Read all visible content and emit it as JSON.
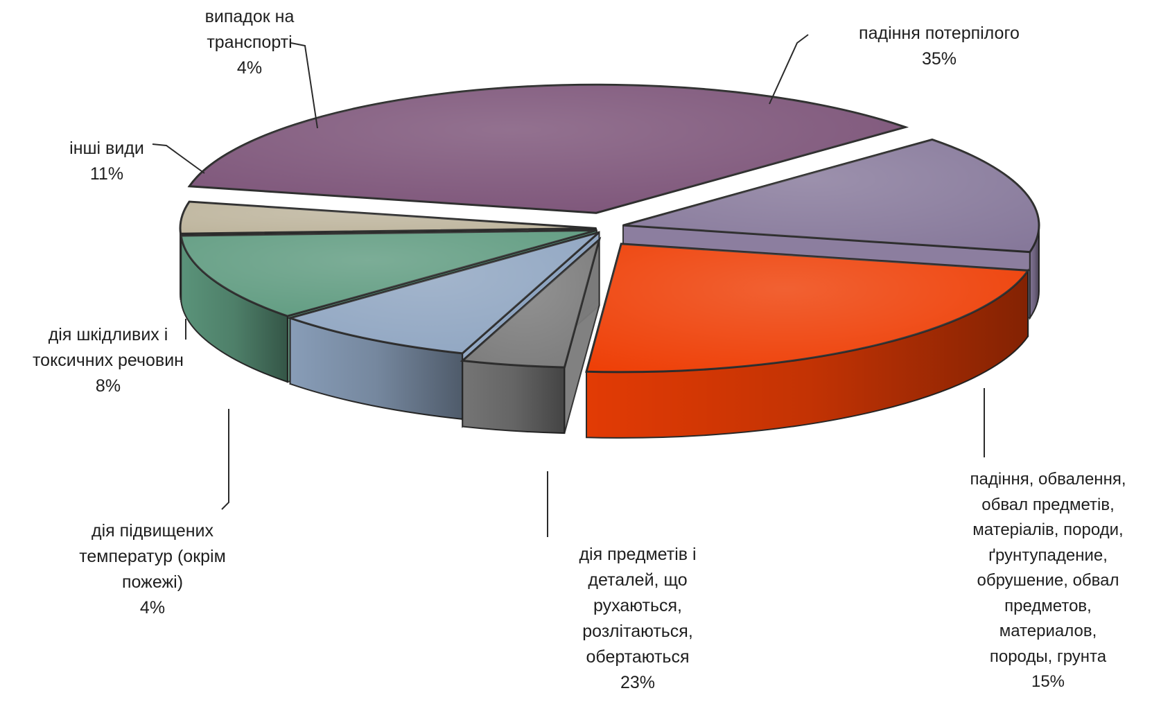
{
  "chart_data": {
    "type": "pie",
    "title": "",
    "slices": [
      {
        "label": "падіння потерпілого",
        "percent_label": "35%",
        "value": 35,
        "color": "#7b5277"
      },
      {
        "label": "падіння, обвалення, обвал предметів, матеріалів, породи, ґрунтупадение, обрушение, обвал предметов, материалов, породы, грунта",
        "percent_label": "15%",
        "value": 15,
        "color": "#86789a"
      },
      {
        "label": "дія предметів і деталей, що рухаються, розлітаються, обертаються",
        "percent_label": "23%",
        "value": 23,
        "color": "#ee3e05"
      },
      {
        "label": "дія підвищених температур (окрім пожежі)",
        "percent_label": "4%",
        "value": 4,
        "color": "#7b7b7b"
      },
      {
        "label": "дія шкідливих і токсичних речовин",
        "percent_label": "8%",
        "value": 8,
        "color": "#8fa5c1"
      },
      {
        "label": "інші види",
        "percent_label": "11%",
        "value": 11,
        "color": "#5f9b80"
      },
      {
        "label": "випадок на транспорті",
        "percent_label": "4%",
        "value": 4,
        "color": "#bdb49c"
      }
    ]
  }
}
